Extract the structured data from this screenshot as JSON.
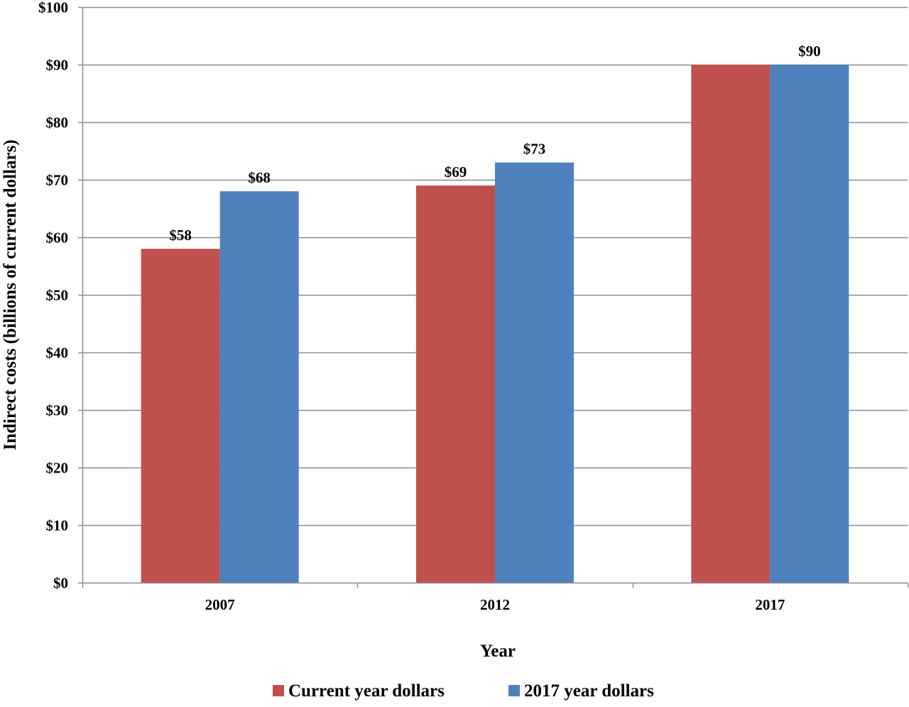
{
  "chart_data": {
    "type": "bar",
    "title": "",
    "xlabel": "Year",
    "ylabel": "Indirect costs (billions of current dollars)",
    "categories": [
      "2007",
      "2012",
      "2017"
    ],
    "series": [
      {
        "name": "Current year dollars",
        "color": "#c0504d",
        "values": [
          58,
          69,
          90
        ],
        "labels": [
          "$58",
          "$69",
          ""
        ]
      },
      {
        "name": "2017 year dollars",
        "color": "#4f81bd",
        "values": [
          68,
          73,
          90
        ],
        "labels": [
          "$68",
          "$73",
          "$90"
        ]
      }
    ],
    "ylim": [
      0,
      100
    ],
    "yticks": [
      0,
      10,
      20,
      30,
      40,
      50,
      60,
      70,
      80,
      90,
      100
    ],
    "ytick_labels": [
      "$0",
      "$10",
      "$20",
      "$30",
      "$40",
      "$50",
      "$60",
      "$70",
      "$80",
      "$90",
      "$100"
    ],
    "grid": true,
    "legend_position": "bottom"
  }
}
